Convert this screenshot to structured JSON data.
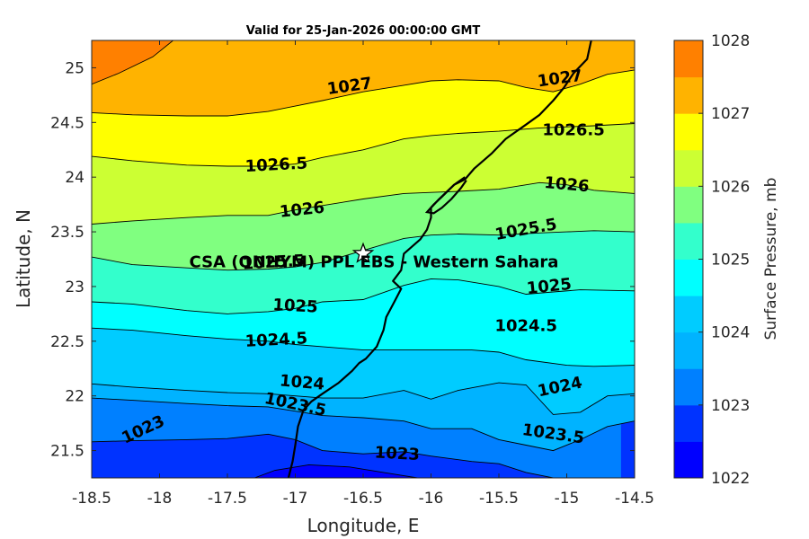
{
  "title": "Valid for 25-Jan-2026 00:00:00 GMT",
  "chart_data": {
    "type": "contour-map",
    "xlabel": "Longitude, E",
    "ylabel": "Latitude, N",
    "xlim": [
      -18.5,
      -14.5
    ],
    "ylim": [
      21.25,
      25.25
    ],
    "x_ticks": [
      -18.5,
      -18,
      -17.5,
      -17,
      -16.5,
      -16,
      -15.5,
      -15,
      -14.5
    ],
    "x_tick_labels": [
      "-18.5",
      "-18",
      "-17.5",
      "-17",
      "-16.5",
      "-16",
      "-15.5",
      "-15",
      "-14.5"
    ],
    "y_ticks": [
      21.5,
      22,
      22.5,
      23,
      23.5,
      24,
      24.5,
      25
    ],
    "y_tick_labels": [
      "21.5",
      "22",
      "22.5",
      "23",
      "23.5",
      "24",
      "24.5",
      "25"
    ],
    "colorbar": {
      "label": "Surface Pressure, mb",
      "min": 1022,
      "max": 1028,
      "step": 0.5,
      "tick_values": [
        1022,
        1023,
        1024,
        1025,
        1026,
        1027,
        1028
      ],
      "tick_labels": [
        "1022",
        "1023",
        "1024",
        "1025",
        "1026",
        "1027",
        "1028"
      ],
      "colors": [
        "#0000ff",
        "#0033ff",
        "#0080ff",
        "#00b3ff",
        "#00ccff",
        "#00ffff",
        "#33ffcc",
        "#80ff80",
        "#ccff33",
        "#ffff00",
        "#ffb300",
        "#ff8000",
        "#ff4000",
        "#ff0000"
      ]
    },
    "contour_levels": [
      1023,
      1023.5,
      1024,
      1024.5,
      1025,
      1025.5,
      1026,
      1026.5,
      1027
    ],
    "contour_lines": [
      {
        "level": 1023,
        "points": [
          [
            -18.5,
            21.58
          ],
          [
            -18.2,
            21.59
          ],
          [
            -17.8,
            21.6
          ],
          [
            -17.5,
            21.61
          ],
          [
            -17.2,
            21.65
          ],
          [
            -17.0,
            21.6
          ],
          [
            -16.8,
            21.5
          ],
          [
            -16.5,
            21.47
          ],
          [
            -16.2,
            21.49
          ],
          [
            -16.0,
            21.45
          ],
          [
            -15.7,
            21.4
          ],
          [
            -15.5,
            21.38
          ],
          [
            -15.3,
            21.3
          ],
          [
            -15.1,
            21.25
          ]
        ]
      },
      {
        "level": 1023.5,
        "points": [
          [
            -18.5,
            21.98
          ],
          [
            -18.2,
            21.96
          ],
          [
            -17.8,
            21.93
          ],
          [
            -17.5,
            21.91
          ],
          [
            -17.2,
            21.9
          ],
          [
            -17.0,
            21.86
          ],
          [
            -16.8,
            21.82
          ],
          [
            -16.5,
            21.8
          ],
          [
            -16.2,
            21.77
          ],
          [
            -16.0,
            21.7
          ],
          [
            -15.7,
            21.7
          ],
          [
            -15.5,
            21.6
          ],
          [
            -15.3,
            21.55
          ],
          [
            -15.1,
            21.5
          ],
          [
            -14.9,
            21.6
          ],
          [
            -14.7,
            21.72
          ],
          [
            -14.5,
            21.77
          ]
        ]
      },
      {
        "level": 1024,
        "points": [
          [
            -18.5,
            22.11
          ],
          [
            -18.2,
            22.08
          ],
          [
            -17.8,
            22.05
          ],
          [
            -17.5,
            22.03
          ],
          [
            -17.2,
            22.02
          ],
          [
            -17.0,
            22.0
          ],
          [
            -16.8,
            21.98
          ],
          [
            -16.5,
            21.98
          ],
          [
            -16.2,
            22.05
          ],
          [
            -16.0,
            21.97
          ],
          [
            -15.8,
            22.05
          ],
          [
            -15.5,
            22.12
          ],
          [
            -15.3,
            22.1
          ],
          [
            -15.1,
            21.83
          ],
          [
            -14.9,
            21.85
          ],
          [
            -14.7,
            22.0
          ],
          [
            -14.5,
            22.02
          ]
        ]
      },
      {
        "level": 1024.5,
        "points": [
          [
            -18.5,
            22.62
          ],
          [
            -18.2,
            22.6
          ],
          [
            -17.8,
            22.55
          ],
          [
            -17.5,
            22.52
          ],
          [
            -17.2,
            22.5
          ],
          [
            -17.0,
            22.47
          ],
          [
            -16.8,
            22.45
          ],
          [
            -16.5,
            22.42
          ],
          [
            -16.2,
            22.42
          ],
          [
            -16.0,
            22.42
          ],
          [
            -15.7,
            22.42
          ],
          [
            -15.5,
            22.4
          ],
          [
            -15.3,
            22.33
          ],
          [
            -15.0,
            22.28
          ],
          [
            -14.8,
            22.27
          ],
          [
            -14.5,
            22.28
          ]
        ]
      },
      {
        "level": 1025,
        "points": [
          [
            -18.5,
            22.86
          ],
          [
            -18.2,
            22.84
          ],
          [
            -17.8,
            22.78
          ],
          [
            -17.5,
            22.75
          ],
          [
            -17.2,
            22.77
          ],
          [
            -17.0,
            22.8
          ],
          [
            -16.8,
            22.86
          ],
          [
            -16.5,
            22.88
          ],
          [
            -16.2,
            23.01
          ],
          [
            -16.0,
            23.07
          ],
          [
            -15.8,
            23.06
          ],
          [
            -15.5,
            23.0
          ],
          [
            -15.3,
            22.93
          ],
          [
            -15.1,
            22.95
          ],
          [
            -14.9,
            22.97
          ],
          [
            -14.5,
            22.96
          ]
        ]
      },
      {
        "level": 1025.5,
        "points": [
          [
            -18.5,
            23.27
          ],
          [
            -18.2,
            23.2
          ],
          [
            -17.8,
            23.17
          ],
          [
            -17.5,
            23.15
          ],
          [
            -17.2,
            23.16
          ],
          [
            -17.0,
            23.18
          ],
          [
            -16.8,
            23.22
          ],
          [
            -16.5,
            23.33
          ],
          [
            -16.2,
            23.44
          ],
          [
            -16.0,
            23.47
          ],
          [
            -15.8,
            23.48
          ],
          [
            -15.5,
            23.47
          ],
          [
            -15.2,
            23.49
          ],
          [
            -15.0,
            23.5
          ],
          [
            -14.8,
            23.51
          ],
          [
            -14.5,
            23.5
          ]
        ]
      },
      {
        "level": 1026,
        "points": [
          [
            -18.5,
            23.57
          ],
          [
            -18.2,
            23.6
          ],
          [
            -17.8,
            23.63
          ],
          [
            -17.5,
            23.65
          ],
          [
            -17.2,
            23.65
          ],
          [
            -17.0,
            23.7
          ],
          [
            -16.8,
            23.74
          ],
          [
            -16.5,
            23.8
          ],
          [
            -16.2,
            23.85
          ],
          [
            -16.0,
            23.86
          ],
          [
            -15.8,
            23.87
          ],
          [
            -15.5,
            23.89
          ],
          [
            -15.2,
            23.95
          ],
          [
            -15.0,
            23.93
          ],
          [
            -14.8,
            23.88
          ],
          [
            -14.5,
            23.85
          ]
        ]
      },
      {
        "level": 1026.5,
        "points": [
          [
            -18.5,
            24.19
          ],
          [
            -18.2,
            24.15
          ],
          [
            -17.8,
            24.11
          ],
          [
            -17.5,
            24.1
          ],
          [
            -17.2,
            24.1
          ],
          [
            -17.0,
            24.12
          ],
          [
            -16.8,
            24.18
          ],
          [
            -16.5,
            24.25
          ],
          [
            -16.2,
            24.35
          ],
          [
            -16.0,
            24.38
          ],
          [
            -15.8,
            24.4
          ],
          [
            -15.5,
            24.42
          ],
          [
            -15.2,
            24.45
          ],
          [
            -15.0,
            24.46
          ],
          [
            -14.8,
            24.47
          ],
          [
            -14.5,
            24.49
          ]
        ]
      },
      {
        "level": 1027,
        "points": [
          [
            -18.5,
            24.59
          ],
          [
            -18.2,
            24.57
          ],
          [
            -17.8,
            24.56
          ],
          [
            -17.5,
            24.56
          ],
          [
            -17.2,
            24.6
          ],
          [
            -17.0,
            24.65
          ],
          [
            -16.8,
            24.7
          ],
          [
            -16.5,
            24.78
          ],
          [
            -16.2,
            24.84
          ],
          [
            -16.0,
            24.88
          ],
          [
            -15.8,
            24.89
          ],
          [
            -15.5,
            24.88
          ],
          [
            -15.3,
            24.82
          ],
          [
            -15.1,
            24.78
          ],
          [
            -14.9,
            24.85
          ],
          [
            -14.7,
            24.94
          ],
          [
            -14.5,
            24.98
          ]
        ]
      }
    ],
    "contour_labels": [
      {
        "text": "1027",
        "lon": -16.6,
        "lat": 24.83,
        "angle": -8
      },
      {
        "text": "1027",
        "lon": -15.05,
        "lat": 24.9,
        "angle": -8
      },
      {
        "text": "1026.5",
        "lon": -17.14,
        "lat": 24.11,
        "angle": -3
      },
      {
        "text": "1026.5",
        "lon": -14.95,
        "lat": 24.43,
        "angle": 0
      },
      {
        "text": "1026",
        "lon": -16.95,
        "lat": 23.7,
        "angle": -6
      },
      {
        "text": "1026",
        "lon": -15.0,
        "lat": 23.93,
        "angle": 5
      },
      {
        "text": "1025.5",
        "lon": -17.16,
        "lat": 23.22,
        "angle": -3
      },
      {
        "text": "1025.5",
        "lon": -15.3,
        "lat": 23.52,
        "angle": -10
      },
      {
        "text": "1025",
        "lon": -17.0,
        "lat": 22.82,
        "angle": 3
      },
      {
        "text": "1025",
        "lon": -15.13,
        "lat": 23.0,
        "angle": -6
      },
      {
        "text": "1024.5",
        "lon": -17.14,
        "lat": 22.51,
        "angle": -3
      },
      {
        "text": "1024.5",
        "lon": -15.3,
        "lat": 22.64,
        "angle": 0
      },
      {
        "text": "1024",
        "lon": -16.95,
        "lat": 22.12,
        "angle": 5
      },
      {
        "text": "1024",
        "lon": -15.05,
        "lat": 22.08,
        "angle": -12
      },
      {
        "text": "1023.5",
        "lon": -17.0,
        "lat": 21.92,
        "angle": 12
      },
      {
        "text": "1023.5",
        "lon": -15.1,
        "lat": 21.65,
        "angle": 8
      },
      {
        "text": "1023",
        "lon": -18.12,
        "lat": 21.69,
        "angle": -25
      },
      {
        "text": "1023",
        "lon": -16.25,
        "lat": 21.47,
        "angle": 3
      }
    ],
    "coastline": [
      [
        -14.82,
        25.25
      ],
      [
        -14.85,
        25.08
      ],
      [
        -14.95,
        24.95
      ],
      [
        -15.02,
        24.82
      ],
      [
        -15.1,
        24.7
      ],
      [
        -15.2,
        24.57
      ],
      [
        -15.3,
        24.48
      ],
      [
        -15.45,
        24.35
      ],
      [
        -15.55,
        24.22
      ],
      [
        -15.68,
        24.08
      ],
      [
        -15.75,
        23.98
      ],
      [
        -15.83,
        23.93
      ],
      [
        -15.94,
        23.8
      ],
      [
        -16.0,
        23.72
      ],
      [
        -16.0,
        23.63
      ],
      [
        -16.03,
        23.52
      ],
      [
        -16.08,
        23.43
      ],
      [
        -16.2,
        23.3
      ],
      [
        -16.22,
        23.15
      ],
      [
        -16.28,
        23.05
      ],
      [
        -16.22,
        22.98
      ],
      [
        -16.27,
        22.86
      ],
      [
        -16.33,
        22.72
      ],
      [
        -16.35,
        22.6
      ],
      [
        -16.4,
        22.45
      ],
      [
        -16.48,
        22.34
      ],
      [
        -16.53,
        22.3
      ],
      [
        -16.58,
        22.23
      ],
      [
        -16.68,
        22.12
      ],
      [
        -16.8,
        22.02
      ],
      [
        -16.88,
        21.95
      ],
      [
        -16.94,
        21.87
      ],
      [
        -16.98,
        21.72
      ],
      [
        -17.0,
        21.55
      ],
      [
        -17.02,
        21.4
      ],
      [
        -17.05,
        21.25
      ]
    ],
    "coastline_inlet": [
      [
        -15.75,
        24.0
      ],
      [
        -15.83,
        23.93
      ],
      [
        -15.92,
        23.82
      ],
      [
        -15.98,
        23.75
      ],
      [
        -16.03,
        23.68
      ],
      [
        -15.98,
        23.67
      ],
      [
        -15.92,
        23.72
      ],
      [
        -15.85,
        23.8
      ],
      [
        -15.78,
        23.9
      ],
      [
        -15.74,
        23.97
      ]
    ],
    "station": {
      "name": "CSA (ONHYM) PPL EBS  - Western Sahara",
      "lon": -16.5,
      "lat": 23.3,
      "marker": "star"
    }
  }
}
